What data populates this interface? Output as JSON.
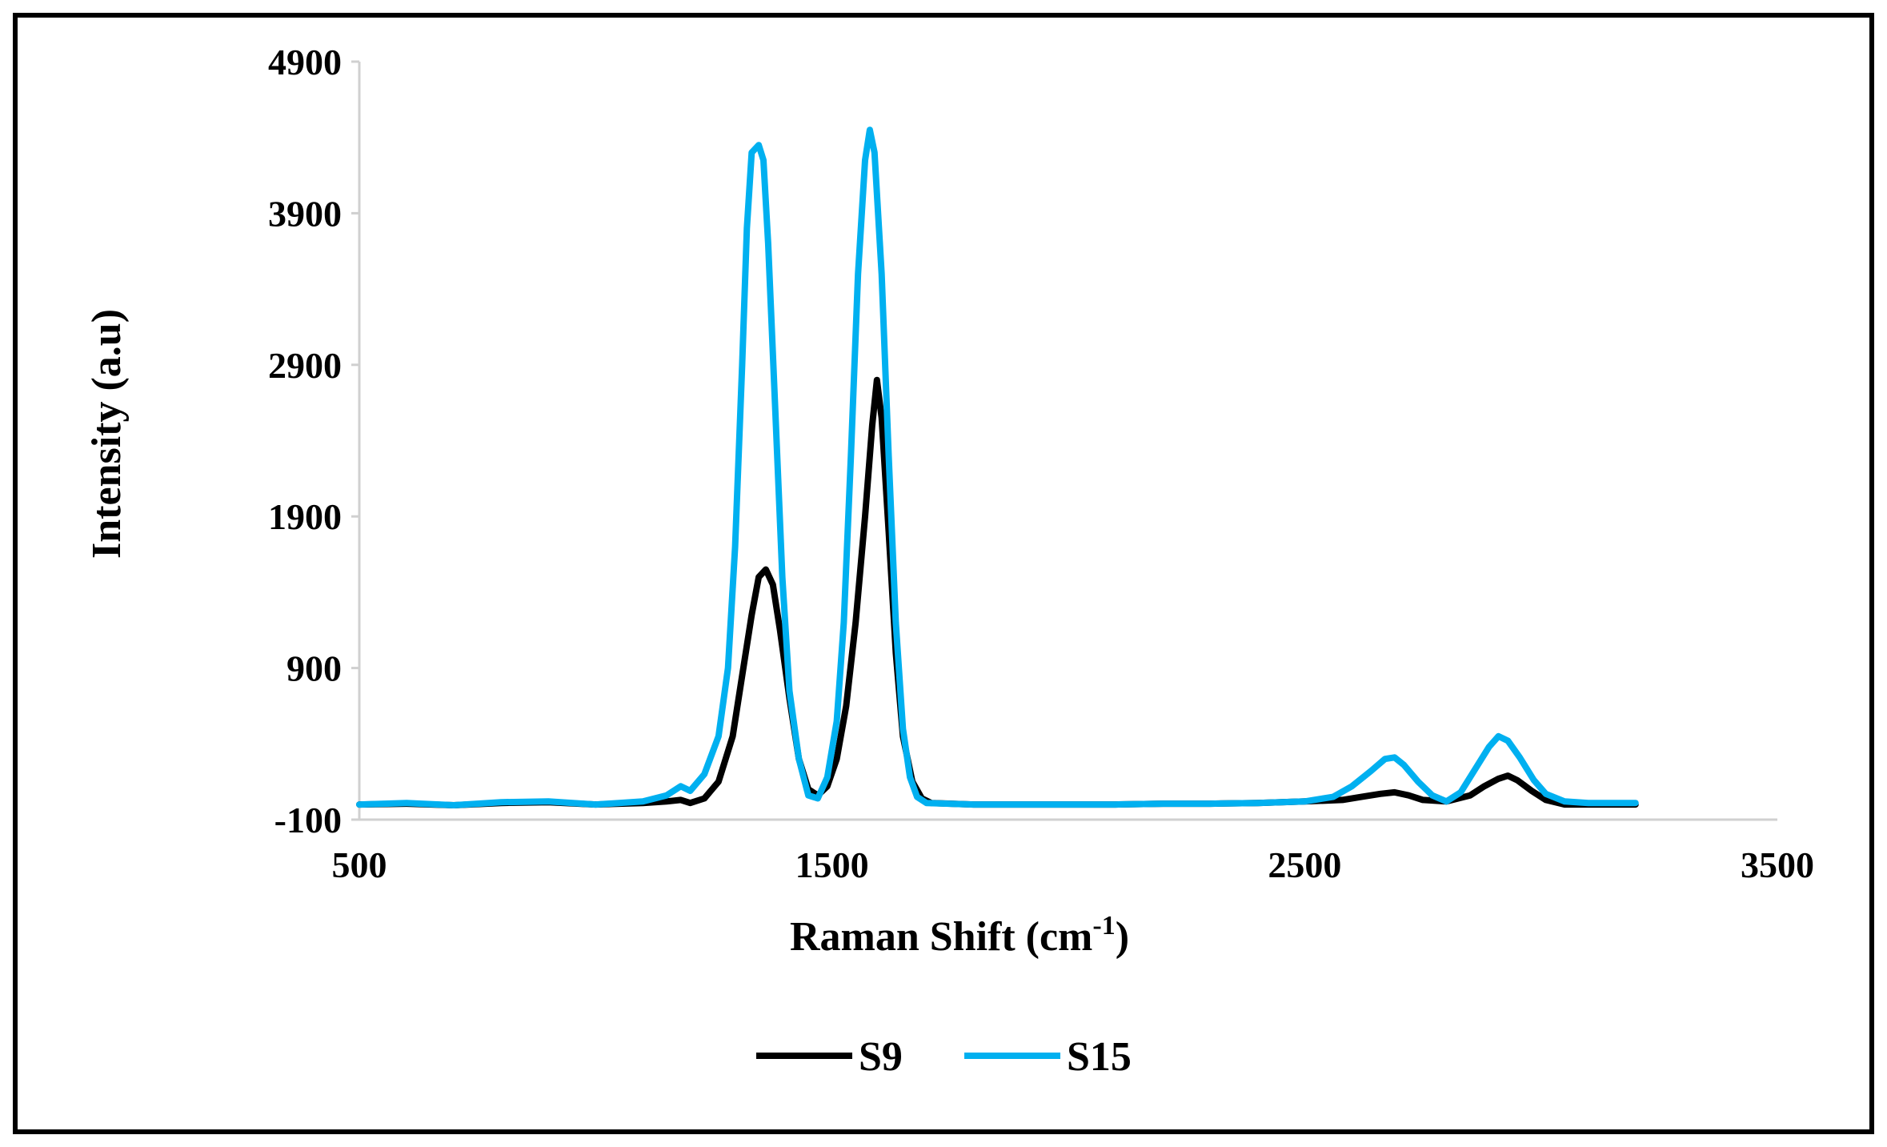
{
  "chart_data": {
    "type": "line",
    "title": "",
    "xlabel": "Raman Shift (cm",
    "xlabel_sup": "-1",
    "xlabel_end": ")",
    "ylabel": "Intensity (a.u)",
    "xlim": [
      500,
      3500
    ],
    "ylim": [
      -100,
      4900
    ],
    "xticks": [
      500,
      1500,
      2500,
      3500
    ],
    "yticks": [
      -100,
      900,
      1900,
      2900,
      3900,
      4900
    ],
    "grid": false,
    "legend_position": "bottom",
    "series": [
      {
        "name": "S9",
        "color": "#000000",
        "points": [
          [
            500,
            0
          ],
          [
            600,
            5
          ],
          [
            700,
            -5
          ],
          [
            800,
            10
          ],
          [
            900,
            15
          ],
          [
            1000,
            0
          ],
          [
            1100,
            10
          ],
          [
            1150,
            20
          ],
          [
            1180,
            30
          ],
          [
            1200,
            10
          ],
          [
            1230,
            40
          ],
          [
            1260,
            150
          ],
          [
            1290,
            450
          ],
          [
            1310,
            850
          ],
          [
            1330,
            1250
          ],
          [
            1345,
            1500
          ],
          [
            1360,
            1550
          ],
          [
            1375,
            1450
          ],
          [
            1390,
            1150
          ],
          [
            1410,
            700
          ],
          [
            1430,
            300
          ],
          [
            1450,
            100
          ],
          [
            1470,
            60
          ],
          [
            1490,
            120
          ],
          [
            1510,
            300
          ],
          [
            1530,
            650
          ],
          [
            1550,
            1200
          ],
          [
            1570,
            1900
          ],
          [
            1585,
            2500
          ],
          [
            1595,
            2800
          ],
          [
            1605,
            2550
          ],
          [
            1620,
            1800
          ],
          [
            1635,
            1000
          ],
          [
            1650,
            450
          ],
          [
            1670,
            150
          ],
          [
            1690,
            40
          ],
          [
            1710,
            10
          ],
          [
            1800,
            0
          ],
          [
            1900,
            0
          ],
          [
            2000,
            0
          ],
          [
            2100,
            0
          ],
          [
            2200,
            5
          ],
          [
            2300,
            5
          ],
          [
            2400,
            10
          ],
          [
            2500,
            20
          ],
          [
            2580,
            30
          ],
          [
            2620,
            50
          ],
          [
            2660,
            70
          ],
          [
            2690,
            80
          ],
          [
            2720,
            60
          ],
          [
            2750,
            30
          ],
          [
            2800,
            20
          ],
          [
            2850,
            60
          ],
          [
            2880,
            120
          ],
          [
            2910,
            170
          ],
          [
            2930,
            190
          ],
          [
            2950,
            160
          ],
          [
            2980,
            90
          ],
          [
            3010,
            30
          ],
          [
            3050,
            0
          ],
          [
            3100,
            0
          ],
          [
            3150,
            0
          ],
          [
            3200,
            0
          ]
        ]
      },
      {
        "name": "S15",
        "color": "#00b0f0",
        "points": [
          [
            500,
            0
          ],
          [
            600,
            10
          ],
          [
            700,
            -5
          ],
          [
            800,
            15
          ],
          [
            900,
            20
          ],
          [
            1000,
            0
          ],
          [
            1100,
            20
          ],
          [
            1150,
            60
          ],
          [
            1180,
            120
          ],
          [
            1200,
            90
          ],
          [
            1230,
            200
          ],
          [
            1260,
            450
          ],
          [
            1280,
            900
          ],
          [
            1295,
            1700
          ],
          [
            1310,
            2900
          ],
          [
            1320,
            3800
          ],
          [
            1330,
            4300
          ],
          [
            1345,
            4350
          ],
          [
            1355,
            4250
          ],
          [
            1365,
            3700
          ],
          [
            1380,
            2600
          ],
          [
            1395,
            1500
          ],
          [
            1410,
            750
          ],
          [
            1430,
            300
          ],
          [
            1450,
            60
          ],
          [
            1470,
            40
          ],
          [
            1490,
            180
          ],
          [
            1510,
            550
          ],
          [
            1525,
            1200
          ],
          [
            1540,
            2300
          ],
          [
            1555,
            3500
          ],
          [
            1570,
            4250
          ],
          [
            1580,
            4450
          ],
          [
            1590,
            4300
          ],
          [
            1605,
            3500
          ],
          [
            1620,
            2300
          ],
          [
            1635,
            1200
          ],
          [
            1650,
            500
          ],
          [
            1665,
            180
          ],
          [
            1680,
            50
          ],
          [
            1700,
            10
          ],
          [
            1800,
            0
          ],
          [
            1900,
            0
          ],
          [
            2000,
            0
          ],
          [
            2100,
            0
          ],
          [
            2200,
            5
          ],
          [
            2300,
            5
          ],
          [
            2400,
            10
          ],
          [
            2500,
            20
          ],
          [
            2560,
            50
          ],
          [
            2600,
            120
          ],
          [
            2640,
            220
          ],
          [
            2670,
            300
          ],
          [
            2690,
            310
          ],
          [
            2710,
            260
          ],
          [
            2740,
            150
          ],
          [
            2770,
            60
          ],
          [
            2800,
            20
          ],
          [
            2830,
            80
          ],
          [
            2860,
            230
          ],
          [
            2890,
            380
          ],
          [
            2910,
            450
          ],
          [
            2930,
            420
          ],
          [
            2955,
            310
          ],
          [
            2985,
            160
          ],
          [
            3010,
            70
          ],
          [
            3050,
            20
          ],
          [
            3100,
            10
          ],
          [
            3150,
            10
          ],
          [
            3200,
            10
          ]
        ]
      }
    ]
  }
}
